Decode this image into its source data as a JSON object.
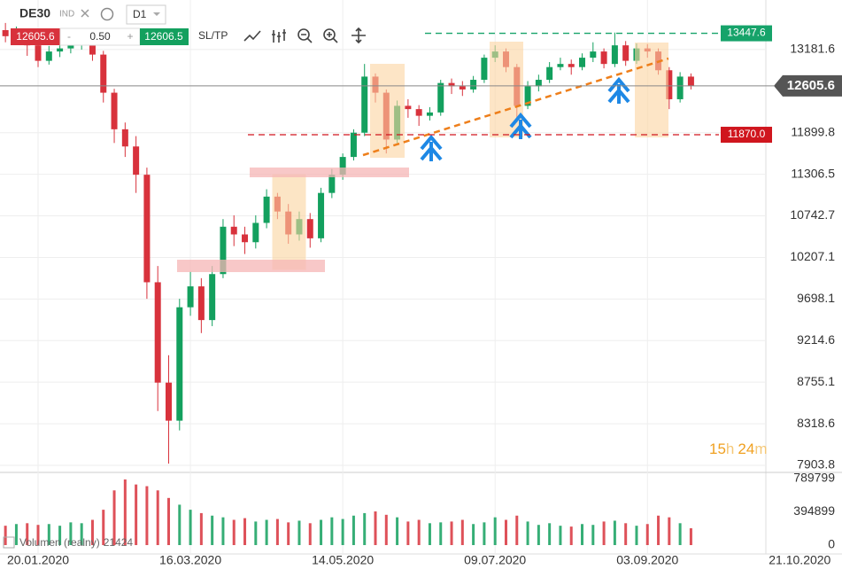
{
  "toolbar": {
    "symbol": "DE30",
    "market": "IND",
    "interval": "D1",
    "bid": 12605.6,
    "minus": "-",
    "volume": "0.50",
    "plus": "+",
    "ask": 12606.5,
    "sltp": "SL/TP"
  },
  "countdown": [
    "15",
    "h",
    "24",
    "m"
  ],
  "chart_data": [
    {
      "type": "candlestick",
      "categories": [
        null,
        null,
        null,
        "20.01.2020",
        null,
        null,
        null,
        null,
        null,
        null,
        null,
        null,
        null,
        null,
        null,
        null,
        null,
        "16.03.2020",
        null,
        null,
        null,
        null,
        null,
        null,
        null,
        null,
        null,
        null,
        null,
        null,
        null,
        "14.05.2020",
        null,
        null,
        null,
        null,
        null,
        null,
        null,
        null,
        null,
        null,
        null,
        null,
        null,
        "09.07.2020",
        null,
        null,
        null,
        null,
        null,
        null,
        null,
        null,
        null,
        null,
        null,
        null,
        null,
        "03.09.2020",
        null,
        null,
        null,
        null,
        null,
        null,
        null,
        null,
        null,
        null,
        null,
        null,
        null,
        "21.10.2020"
      ],
      "open": [
        13500,
        13400,
        13450,
        13250,
        13000,
        13150,
        13200,
        13250,
        13300,
        13100,
        12500,
        11950,
        11700,
        11300,
        9900,
        8750,
        8350,
        9600,
        9850,
        9450,
        10000,
        10600,
        10500,
        10400,
        10650,
        11000,
        10800,
        10500,
        10700,
        10450,
        11050,
        11300,
        11550,
        11900,
        12750,
        12500,
        11800,
        12300,
        12250,
        12150,
        12200,
        12650,
        12600,
        12550,
        12700,
        13050,
        13150,
        12900,
        12300,
        12600,
        12700,
        12900,
        12950,
        12900,
        13050,
        13150,
        12950,
        13250,
        13000,
        13200,
        13150,
        12850,
        12400,
        12750,
        null,
        null,
        null,
        null,
        null,
        null,
        null,
        null,
        null,
        null
      ],
      "high": [
        13620,
        13560,
        13520,
        13310,
        13240,
        13290,
        13330,
        13390,
        13350,
        13160,
        12560,
        12050,
        11850,
        11400,
        10100,
        9050,
        9700,
        10030,
        9950,
        10100,
        10700,
        10750,
        10600,
        10750,
        11100,
        11050,
        10900,
        10800,
        10780,
        11120,
        11380,
        11600,
        11950,
        12950,
        12800,
        12550,
        12380,
        12400,
        12310,
        12280,
        12700,
        12720,
        12680,
        12760,
        13100,
        13250,
        13200,
        12950,
        12680,
        12780,
        12980,
        13050,
        13020,
        13120,
        13300,
        13200,
        13460,
        13320,
        13280,
        13270,
        13200,
        12900,
        12820,
        12800,
        null,
        null,
        null,
        null,
        null,
        null,
        null,
        null,
        null,
        null
      ],
      "low": [
        13300,
        13330,
        13080,
        12900,
        12940,
        13060,
        13120,
        13180,
        13000,
        12350,
        11750,
        11550,
        11050,
        9700,
        8450,
        7920,
        8250,
        9500,
        9300,
        9380,
        9950,
        10350,
        10250,
        10320,
        10580,
        10700,
        10380,
        10420,
        10330,
        10400,
        10980,
        11230,
        11500,
        11850,
        12350,
        11600,
        11750,
        12120,
        12000,
        12080,
        12150,
        12480,
        12450,
        12500,
        12650,
        12980,
        12820,
        12050,
        12250,
        12520,
        12650,
        12850,
        12780,
        12850,
        12980,
        12880,
        12900,
        12920,
        12950,
        13050,
        12780,
        12250,
        12350,
        12550,
        null,
        null,
        null,
        null,
        null,
        null,
        null,
        null,
        null,
        null
      ],
      "close": [
        13400,
        13450,
        13250,
        13000,
        13150,
        13200,
        13250,
        13300,
        13100,
        12500,
        11950,
        11700,
        11300,
        9900,
        8750,
        8350,
        9600,
        9850,
        9450,
        10000,
        10600,
        10500,
        10400,
        10650,
        11000,
        10800,
        10500,
        10700,
        10450,
        11050,
        11300,
        11550,
        11900,
        12750,
        12500,
        11800,
        12300,
        12250,
        12150,
        12200,
        12650,
        12600,
        12550,
        12700,
        13050,
        13150,
        12900,
        12300,
        12600,
        12700,
        12900,
        12950,
        12900,
        13050,
        13150,
        12950,
        13250,
        13000,
        13200,
        13150,
        12850,
        12400,
        12750,
        12605.6,
        null,
        null,
        null,
        null,
        null,
        null,
        null,
        null,
        null,
        null
      ],
      "up_color": "#13a05e",
      "down_color": "#d8323c",
      "ylim": [
        7835,
        14010
      ],
      "log_scale": true,
      "yticks": [
        13181.6,
        11899.8,
        11306.5,
        10742.7,
        10207.1,
        9698.1,
        9214.6,
        8755.1,
        8318.6,
        7903.8
      ],
      "grid": true,
      "levels": [
        {
          "value": 13447.6,
          "color": "#16a36a"
        },
        {
          "value": 11870,
          "label": "11870.0",
          "color": "#d0161e"
        }
      ]
    },
    {
      "type": "bar",
      "name": "Volumen (realny)",
      "last_value": 21424,
      "values": [
        230000,
        250000,
        260000,
        240000,
        250000,
        230000,
        270000,
        260000,
        300000,
        420000,
        650000,
        780000,
        720000,
        700000,
        650000,
        560000,
        480000,
        420000,
        380000,
        350000,
        330000,
        300000,
        320000,
        280000,
        300000,
        310000,
        270000,
        290000,
        260000,
        300000,
        330000,
        310000,
        350000,
        380000,
        400000,
        360000,
        330000,
        280000,
        300000,
        260000,
        270000,
        280000,
        300000,
        250000,
        270000,
        330000,
        300000,
        350000,
        280000,
        240000,
        260000,
        230000,
        220000,
        250000,
        240000,
        280000,
        290000,
        260000,
        230000,
        250000,
        350000,
        330000,
        260000,
        200000,
        null,
        null,
        null,
        null,
        null,
        null,
        null,
        null,
        null,
        null
      ],
      "ylim": [
        0,
        863500
      ],
      "yticks": [
        0,
        394899,
        789799
      ]
    }
  ]
}
